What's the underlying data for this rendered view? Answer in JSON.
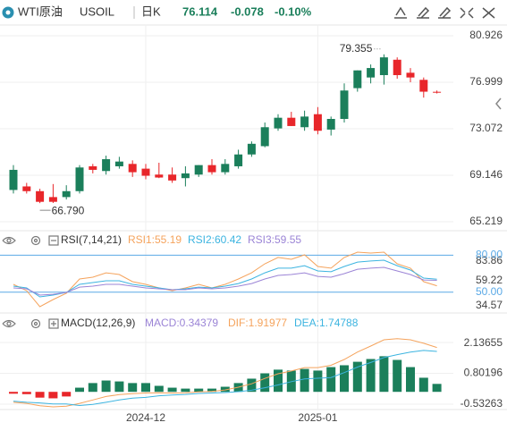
{
  "header": {
    "name": "WTI原油",
    "symbol": "USOIL",
    "period": "日K",
    "price": "76.114",
    "change": "-0.078",
    "change_pct": "-0.10%"
  },
  "chart_data": [
    {
      "type": "candlestick",
      "open": [
        67.9,
        68.2,
        67.8,
        67.3,
        67.3,
        67.8,
        69.9,
        69.5,
        69.9,
        70.1,
        69.7,
        69.2,
        69.2,
        68.9,
        69.2,
        70.0,
        69.4,
        69.9,
        70.9,
        71.6,
        73.1,
        74.0,
        73.2,
        74.3,
        73.0,
        73.9,
        76.5,
        77.4,
        77.6,
        78.9,
        77.8,
        77.2,
        76.19
      ],
      "high": [
        70.0,
        68.5,
        68.0,
        68.4,
        68.3,
        70.0,
        70.1,
        70.8,
        70.7,
        70.4,
        70.1,
        70.2,
        69.8,
        69.9,
        70.0,
        70.5,
        70.5,
        71.3,
        72.0,
        73.6,
        74.3,
        74.5,
        74.6,
        74.9,
        74.1,
        76.9,
        78.0,
        78.5,
        79.355,
        79.1,
        78.2,
        77.4,
        76.3
      ],
      "low": [
        67.6,
        67.6,
        66.79,
        66.8,
        67.1,
        67.6,
        69.3,
        69.2,
        69.7,
        69.0,
        68.8,
        68.9,
        68.5,
        68.2,
        69.0,
        69.2,
        69.2,
        69.7,
        70.7,
        71.5,
        72.9,
        73.3,
        72.9,
        72.6,
        72.5,
        73.6,
        76.2,
        76.9,
        76.8,
        77.3,
        77.0,
        75.7,
        76.05
      ],
      "close": [
        69.6,
        67.8,
        66.9,
        66.9,
        67.8,
        69.8,
        69.6,
        70.5,
        70.3,
        69.4,
        69.1,
        68.95,
        68.7,
        69.3,
        70.0,
        69.4,
        70.1,
        70.9,
        71.8,
        73.2,
        74.0,
        73.3,
        74.1,
        72.9,
        73.9,
        76.3,
        78.0,
        78.2,
        79.1,
        77.6,
        77.4,
        76.2,
        76.114
      ],
      "high_label": "79.355",
      "low_label": "66.790",
      "up_color": "#1b7f5b",
      "down_color": "#e8262a",
      "ylim": [
        64.46,
        81.83
      ],
      "yticks": [
        80.926,
        76.999,
        73.072,
        69.146,
        65.219
      ],
      "grid": true
    },
    {
      "type": "line",
      "title": "RSI(7,14,21)",
      "series": [
        {
          "name": "RSI1:55.19",
          "color": "#f5a35c",
          "values": [
            56.3,
            51.2,
            38.2,
            44.0,
            49.1,
            60.7,
            62.1,
            65.7,
            64.3,
            58.5,
            56.3,
            53.4,
            51.2,
            53.4,
            56.3,
            53.4,
            56.3,
            60.7,
            65.7,
            73.0,
            78.1,
            76.6,
            80.2,
            70.8,
            69.4,
            78.1,
            82.4,
            81.7,
            82.4,
            73.0,
            69.4,
            58.5,
            55.19
          ]
        },
        {
          "name": "RSI2:60.42",
          "color": "#3cb4e0",
          "values": [
            54.9,
            53.4,
            46.2,
            47.6,
            49.8,
            56.3,
            57.8,
            59.2,
            59.2,
            56.3,
            54.9,
            53.4,
            52.0,
            52.7,
            54.1,
            53.4,
            54.9,
            57.0,
            60.7,
            65.7,
            69.4,
            69.4,
            71.5,
            67.2,
            66.5,
            70.8,
            74.4,
            75.2,
            75.9,
            71.5,
            67.9,
            61.4,
            60.42
          ]
        },
        {
          "name": "RSI3:59.55",
          "color": "#9b84d6",
          "values": [
            53.4,
            52.7,
            47.6,
            48.3,
            49.8,
            54.1,
            54.9,
            56.3,
            56.3,
            54.9,
            53.4,
            52.7,
            52.0,
            52.0,
            53.4,
            52.7,
            53.4,
            54.9,
            57.0,
            60.7,
            63.6,
            64.3,
            65.7,
            62.8,
            62.1,
            65.0,
            68.6,
            69.4,
            70.1,
            67.2,
            64.3,
            59.9,
            59.55
          ]
        }
      ],
      "levels": [
        {
          "value": 80,
          "label": "80.00"
        },
        {
          "value": 50,
          "label": "50.00"
        }
      ],
      "level_color": "#5aa9e6",
      "ylim": [
        34.57,
        83.86
      ],
      "yticks": [
        83.86,
        59.22,
        34.57
      ]
    },
    {
      "type": "macd",
      "title": "MACD(12,26,9)",
      "categories": [
        null,
        null,
        null,
        null,
        null,
        null,
        null,
        null,
        null,
        null,
        "2024-12",
        null,
        null,
        null,
        null,
        null,
        null,
        null,
        null,
        null,
        null,
        null,
        null,
        "2025-01",
        null,
        null,
        null,
        null,
        null,
        null,
        null,
        null,
        null
      ],
      "histogram": {
        "name": "MACD:0.34379",
        "color": "#9b84d6",
        "values": [
          -0.08,
          -0.1,
          -0.25,
          -0.28,
          -0.2,
          0.18,
          0.38,
          0.49,
          0.45,
          0.38,
          0.38,
          0.26,
          0.18,
          0.14,
          0.14,
          0.14,
          0.22,
          0.38,
          0.57,
          0.8,
          0.96,
          0.92,
          0.99,
          0.92,
          1.07,
          1.15,
          1.3,
          1.42,
          1.54,
          1.38,
          1.07,
          0.61,
          0.34379
        ]
      },
      "series": [
        {
          "name": "DIF:1.91977",
          "color": "#f5a35c",
          "values": [
            -0.45,
            -0.5,
            -0.6,
            -0.65,
            -0.62,
            -0.5,
            -0.35,
            -0.2,
            -0.12,
            -0.08,
            -0.05,
            -0.04,
            -0.05,
            -0.04,
            0.0,
            0.02,
            0.08,
            0.2,
            0.35,
            0.58,
            0.78,
            0.9,
            1.05,
            1.05,
            1.15,
            1.4,
            1.72,
            1.98,
            2.25,
            2.3,
            2.25,
            2.1,
            1.91977
          ]
        },
        {
          "name": "DEA:1.74788",
          "color": "#3cb4e0",
          "values": [
            -0.4,
            -0.45,
            -0.48,
            -0.52,
            -0.52,
            -0.59,
            -0.54,
            -0.45,
            -0.35,
            -0.27,
            -0.24,
            -0.17,
            -0.14,
            -0.11,
            -0.07,
            -0.05,
            -0.03,
            0.01,
            0.07,
            0.18,
            0.3,
            0.44,
            0.56,
            0.59,
            0.62,
            0.83,
            1.07,
            1.27,
            1.48,
            1.61,
            1.72,
            1.79,
            1.74788
          ]
        }
      ],
      "up_color": "#1b7f5b",
      "down_color": "#e8262a",
      "ylim": [
        -0.765,
        2.56
      ],
      "yticks": [
        2.13655,
        0.80196,
        -0.53263
      ]
    }
  ]
}
